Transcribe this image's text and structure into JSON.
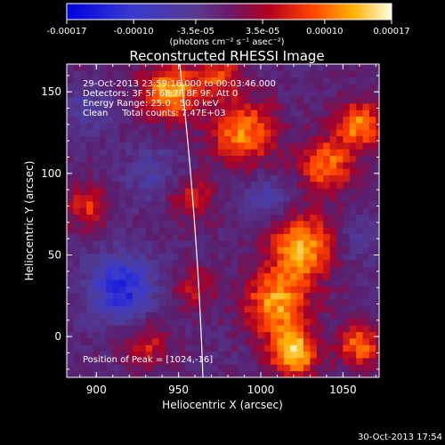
{
  "chart_data": {
    "type": "heatmap",
    "title": "Reconstructed RHESSI Image",
    "xlabel": "Heliocentric X (arcsec)",
    "ylabel": "Heliocentric Y (arcsec)",
    "xlim": [
      882,
      1072
    ],
    "ylim": [
      -25,
      167
    ],
    "x_ticks": [
      900,
      950,
      1000,
      1050
    ],
    "y_ticks": [
      0,
      50,
      100,
      150
    ],
    "colorbar": {
      "range": [
        -0.00017,
        0.00017
      ],
      "tick_values": [
        -0.00017,
        -0.0001,
        -3.5e-05,
        3.5e-05,
        0.0001,
        0.00017
      ],
      "tick_labels": [
        "-0.00017",
        "-0.00010",
        "-3.5e-05",
        "3.5e-05",
        "0.00010",
        "0.00017"
      ],
      "unit_label": "(photons cm⁻² s⁻¹ asec⁻²)"
    },
    "annotations": [
      "29-Oct-2013 23:59:16.000 to 00:03:46.000",
      "Detectors: 3F 5F 6F 7F 8F 9F, Att 0",
      "Energy Range: 25.0 - 50.0 keV",
      "Clean     Total counts: 7.47E+03"
    ],
    "peak_label": "Position of Peak = [1024,-16]",
    "footer_date": "30-Oct-2013 17:54",
    "emission_blobs": [
      {
        "x": 945,
        "y": 150,
        "value": 0.00014,
        "spread": 12
      },
      {
        "x": 990,
        "y": 125,
        "value": 0.00012,
        "spread": 14
      },
      {
        "x": 1040,
        "y": 105,
        "value": 0.00011,
        "spread": 12
      },
      {
        "x": 1060,
        "y": 130,
        "value": 0.00012,
        "spread": 10
      },
      {
        "x": 1025,
        "y": 55,
        "value": 0.00014,
        "spread": 14
      },
      {
        "x": 1010,
        "y": 20,
        "value": 0.00013,
        "spread": 14
      },
      {
        "x": 1020,
        "y": -10,
        "value": 0.00016,
        "spread": 10
      },
      {
        "x": 1060,
        "y": -5,
        "value": 0.00011,
        "spread": 9
      },
      {
        "x": 895,
        "y": 80,
        "value": 8e-05,
        "spread": 9
      },
      {
        "x": 958,
        "y": 85,
        "value": 7e-05,
        "spread": 10
      },
      {
        "x": 975,
        "y": 160,
        "value": 9e-05,
        "spread": 9
      },
      {
        "x": 930,
        "y": -5,
        "value": 7e-05,
        "spread": 10
      },
      {
        "x": 960,
        "y": 30,
        "value": 6e-05,
        "spread": 9
      },
      {
        "x": 915,
        "y": 30,
        "value": -0.00012,
        "spread": 14
      },
      {
        "x": 935,
        "y": 100,
        "value": -5e-05,
        "spread": 12
      },
      {
        "x": 1005,
        "y": 85,
        "value": -6e-05,
        "spread": 10
      },
      {
        "x": 895,
        "y": 140,
        "value": -5e-05,
        "spread": 10
      },
      {
        "x": 1060,
        "y": 60,
        "value": -4e-05,
        "spread": 10
      }
    ]
  }
}
